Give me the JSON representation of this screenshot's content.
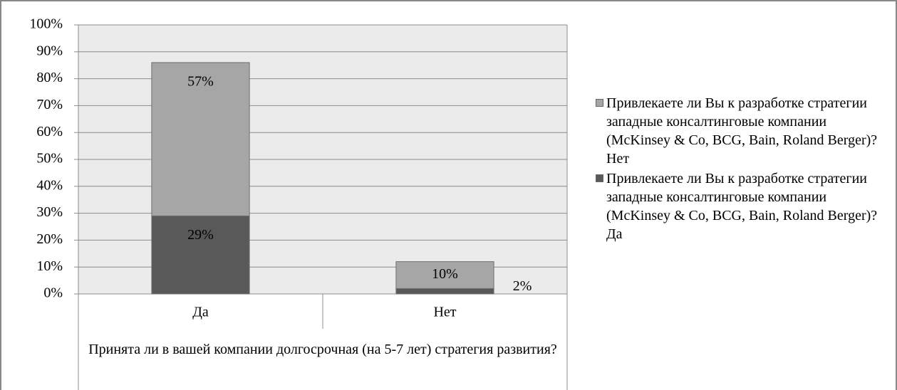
{
  "chart_data": {
    "type": "stacked_bar",
    "categories": [
      "Да",
      "Нет"
    ],
    "series": [
      {
        "name": "Привлекаете ли Вы к разработке стратегии западные консалтинговые компании (McKinsey & Co, BCG, Bain, Roland Berger)? Да",
        "color": "#595959",
        "values": [
          29,
          2
        ],
        "value_labels": [
          "29%",
          "2%"
        ]
      },
      {
        "name": "Привлекаете ли Вы к разработке стратегии западные консалтинговые компании (McKinsey & Co, BCG, Bain, Roland Berger)? Нет",
        "color": "#a6a6a6",
        "values": [
          57,
          10
        ],
        "value_labels": [
          "57%",
          "10%"
        ]
      }
    ],
    "x_label": "Принята ли в вашей компании долгосрочная (на 5-7 лет) стратегия развития?",
    "ylim": [
      0,
      100
    ],
    "yticks": [
      {
        "value": 0,
        "label": "0%"
      },
      {
        "value": 10,
        "label": "10%"
      },
      {
        "value": 20,
        "label": "20%"
      },
      {
        "value": 30,
        "label": "30%"
      },
      {
        "value": 40,
        "label": "40%"
      },
      {
        "value": 50,
        "label": "50%"
      },
      {
        "value": 60,
        "label": "60%"
      },
      {
        "value": 70,
        "label": "70%"
      },
      {
        "value": 80,
        "label": "80%"
      },
      {
        "value": 90,
        "label": "90%"
      },
      {
        "value": 100,
        "label": "100%"
      }
    ],
    "grid": true,
    "legend": "right"
  }
}
